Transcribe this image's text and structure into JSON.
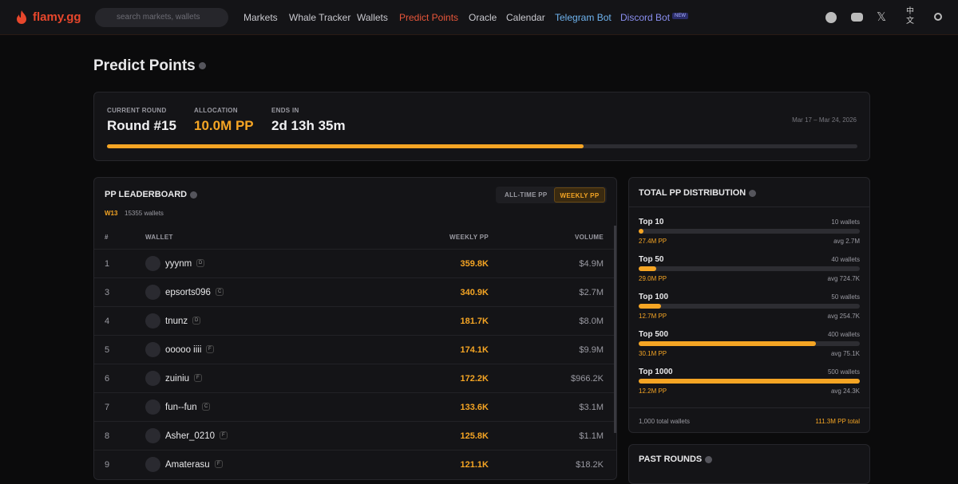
{
  "nav": {
    "logo": "flamy.gg",
    "search": "search markets, wallets",
    "links": [
      "Markets",
      "Whale Tracker",
      "Wallets",
      "Predict Points",
      "Oracle",
      "Calendar",
      "Telegram Bot",
      "Discord Bot"
    ],
    "badge": "NEW",
    "lang": "中文"
  },
  "page": {
    "title": "Predict Points"
  },
  "round": {
    "labels": [
      "CURRENT ROUND",
      "ALLOCATION",
      "ENDS IN"
    ],
    "values": [
      "Round #15",
      "10.0M PP",
      "2d 13h 35m"
    ],
    "dates": "Mar 17 – Mar 24, 2026"
  },
  "leaderboard": {
    "title": "PP LEADERBOARD",
    "tabs": [
      "ALL-TIME PP",
      "WEEKLY PP"
    ],
    "week": "W13",
    "wallets": "15355 wallets",
    "headers": [
      "#",
      "WALLET",
      "WEEKLY PP",
      "VOLUME"
    ],
    "rows": [
      [
        "1",
        "yyynm",
        "D",
        "359.8K",
        "$4.9M"
      ],
      [
        "3",
        "epsorts096",
        "C",
        "340.9K",
        "$2.7M"
      ],
      [
        "4",
        "tnunz",
        "D",
        "181.7K",
        "$8.0M"
      ],
      [
        "5",
        "ooooo iiii",
        "F",
        "174.1K",
        "$9.9M"
      ],
      [
        "6",
        "zuiniu",
        "F",
        "172.2K",
        "$966.2K"
      ],
      [
        "7",
        "fun--fun",
        "C",
        "133.6K",
        "$3.1M"
      ],
      [
        "8",
        "Asher_0210",
        "F",
        "125.8K",
        "$1.1M"
      ],
      [
        "9",
        "Amaterasu",
        "F",
        "121.1K",
        "$18.2K"
      ]
    ]
  },
  "distribution": {
    "title": "TOTAL PP DISTRIBUTION",
    "tiers": [
      [
        "Top 10",
        "10 wallets",
        "27.4M PP",
        "avg 2.7M"
      ],
      [
        "Top 50",
        "40 wallets",
        "29.0M PP",
        "avg 724.7K"
      ],
      [
        "Top 100",
        "50 wallets",
        "12.7M PP",
        "avg 254.7K"
      ],
      [
        "Top 500",
        "400 wallets",
        "30.1M PP",
        "avg 75.1K"
      ],
      [
        "Top 1000",
        "500 wallets",
        "12.2M PP",
        "avg 24.3K"
      ]
    ],
    "footer": [
      "1,000 total wallets",
      "111.3M PP total"
    ]
  },
  "past": {
    "title": "PAST ROUNDS"
  }
}
